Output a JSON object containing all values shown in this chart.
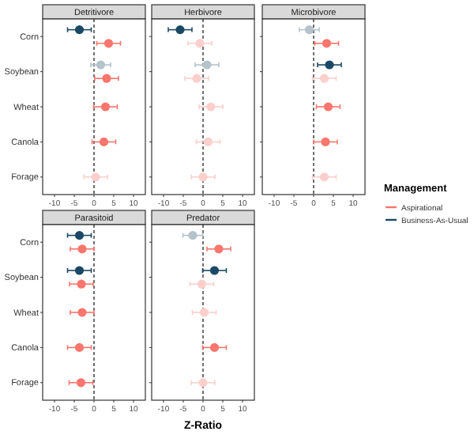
{
  "chart_data": [
    {
      "type": "scatter",
      "title": "Detritivore",
      "orientation": "horizontal",
      "marker": "circle",
      "categories": [
        "Corn",
        "Soybean",
        "Wheat",
        "Canola",
        "Forage"
      ],
      "xlim": [
        -13,
        13
      ],
      "xticks": [
        -10,
        -5,
        0,
        5,
        10
      ],
      "ref_lines": [
        {
          "axis": "x",
          "value": 0,
          "line_style": "dashed",
          "color": "#333333"
        }
      ],
      "series": [
        {
          "color": "#f8766d",
          "values": [
            3.7,
            3.2,
            2.9,
            2.5,
            0.4
          ],
          "errors": [
            3,
            3,
            3,
            3,
            3
          ],
          "colors": [
            null,
            null,
            null,
            null,
            "#fbd0cc"
          ]
        },
        {
          "color": "#1b4965",
          "values": [
            -3.7,
            1.7,
            null,
            null,
            null
          ],
          "errors": [
            3,
            2.5,
            null,
            null,
            null
          ],
          "colors": [
            null,
            "#b4c3cc",
            null,
            null,
            null
          ]
        }
      ]
    },
    {
      "type": "scatter",
      "title": "Herbivore",
      "orientation": "horizontal",
      "marker": "circle",
      "tick_labels": "x",
      "categories": [
        null,
        null,
        null,
        null,
        null
      ],
      "xlim": [
        -13,
        13
      ],
      "xticks": [
        -10,
        -5,
        0,
        5,
        10
      ],
      "ref_lines": [
        {
          "axis": "x",
          "value": 0,
          "line_style": "dashed",
          "color": "#333333"
        }
      ],
      "series": [
        {
          "values": [
            -0.8,
            -1.6,
            2,
            1.3,
            0
          ],
          "errors": [
            3,
            3,
            3,
            3,
            3
          ],
          "colors": [
            "#fbd0cc",
            "#fbd0cc",
            "#fbd0cc",
            "#fbd0cc",
            "#fbd0cc"
          ]
        },
        {
          "color": "#1b4965",
          "values": [
            -5.8,
            1,
            null,
            null,
            null
          ],
          "errors": [
            3,
            3,
            null,
            null,
            null
          ],
          "colors": [
            null,
            "#b4c3cc",
            null,
            null,
            null
          ]
        }
      ]
    },
    {
      "type": "scatter",
      "title": "Microbivore",
      "orientation": "horizontal",
      "marker": "circle",
      "tick_labels": "x",
      "categories": [
        null,
        null,
        null,
        null,
        null
      ],
      "xlim": [
        -13,
        13
      ],
      "xticks": [
        -10,
        -5,
        0,
        5,
        10
      ],
      "ref_lines": [
        {
          "axis": "x",
          "value": 0,
          "line_style": "dashed",
          "color": "#333333"
        }
      ],
      "series": [
        {
          "color": "#f8766d",
          "values": [
            3.3,
            2.7,
            3.7,
            3,
            2.7
          ],
          "errors": [
            3,
            3,
            3,
            3,
            3
          ],
          "colors": [
            null,
            "#fbd0cc",
            null,
            null,
            "#fbd0cc"
          ]
        },
        {
          "color": "#1b4965",
          "values": [
            -1.1,
            4,
            null,
            null,
            null
          ],
          "errors": [
            2.5,
            3,
            null,
            null,
            null
          ],
          "colors": [
            "#b4c3cc",
            null,
            null,
            null,
            null
          ]
        }
      ]
    },
    {
      "type": "scatter",
      "title": "Parasitoid",
      "orientation": "horizontal",
      "marker": "circle",
      "categories": [
        "Corn",
        "Soybean",
        "Wheat",
        "Canola",
        "Forage"
      ],
      "xlim": [
        -13,
        13
      ],
      "xticks": [
        -10,
        -5,
        0,
        5,
        10
      ],
      "ref_lines": [
        {
          "axis": "x",
          "value": 0,
          "line_style": "dashed",
          "color": "#333333"
        }
      ],
      "series": [
        {
          "color": "#f8766d",
          "values": [
            -3,
            -3.2,
            -3,
            -3.7,
            -3.3
          ],
          "errors": [
            3,
            3,
            3,
            3,
            3
          ]
        },
        {
          "color": "#1b4965",
          "values": [
            -3.7,
            -3.7,
            null,
            null,
            null
          ],
          "errors": [
            3,
            3,
            null,
            null,
            null
          ]
        }
      ]
    },
    {
      "type": "scatter",
      "title": "Predator",
      "orientation": "horizontal",
      "marker": "circle",
      "tick_labels": "x",
      "xlabel": "Z-Ratio",
      "legend": "right",
      "legend_title": "Management",
      "categories": [
        null,
        null,
        null,
        null,
        null
      ],
      "xlim": [
        -13,
        13
      ],
      "xticks": [
        -10,
        -5,
        0,
        5,
        10
      ],
      "ref_lines": [
        {
          "axis": "x",
          "value": 0,
          "line_style": "dashed",
          "color": "#333333"
        }
      ],
      "series": [
        {
          "name": "Aspirational",
          "color": "#f8766d",
          "values": [
            4,
            -0.3,
            0.3,
            2.9,
            0
          ],
          "errors": [
            3,
            3,
            3,
            3,
            3
          ],
          "colors": [
            null,
            "#fbd0cc",
            "#fbd0cc",
            null,
            "#fbd0cc"
          ]
        },
        {
          "name": "Business-As-Usual",
          "color": "#1b4965",
          "values": [
            -2.6,
            2.9,
            null,
            null,
            null
          ],
          "errors": [
            2.5,
            3,
            null,
            null,
            null
          ],
          "colors": [
            "#b4c3cc",
            null,
            null,
            null,
            null
          ]
        }
      ]
    }
  ]
}
